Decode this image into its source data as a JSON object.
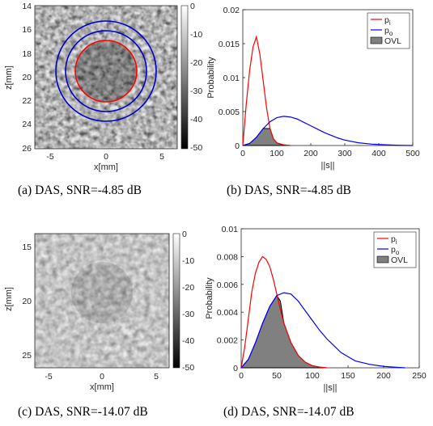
{
  "captions": {
    "a": "(a) DAS, SNR=-4.85 dB",
    "b": "(b) DAS, SNR=-4.85 dB",
    "c": "(c) DAS, SNR=-14.07 dB",
    "d": "(d) DAS, SNR=-14.07 dB"
  },
  "images": [
    {
      "id": "a",
      "xlabel": "x[mm]",
      "ylabel": "z[mm]",
      "xticks": [
        "-5",
        "0",
        "5"
      ],
      "yticks": [
        "14",
        "16",
        "18",
        "20",
        "22",
        "24",
        "26"
      ],
      "colorbar_ticks": [
        "0",
        "-10",
        "-20",
        "-30",
        "-40",
        "-50"
      ],
      "colors": {
        "inner_circle": "#ff0000",
        "outer_circles": "#0000cc"
      }
    },
    {
      "id": "c",
      "xlabel": "x[mm]",
      "ylabel": "z[mm]",
      "xticks": [
        "-5",
        "0",
        "5"
      ],
      "yticks": [
        "15",
        "20",
        "25"
      ],
      "colorbar_ticks": [
        "0",
        "-10",
        "-20",
        "-30",
        "-40",
        "-50"
      ]
    }
  ],
  "chart_data": [
    {
      "type": "area",
      "id": "b",
      "xlabel": "||s||",
      "ylabel": "Probability",
      "xlim": [
        0,
        500
      ],
      "ylim": [
        0,
        0.02
      ],
      "xticks": [
        "0",
        "100",
        "200",
        "300",
        "400",
        "500"
      ],
      "yticks": [
        "0",
        "0.005",
        "0.01",
        "0.015",
        "0.02"
      ],
      "legend_position": "top-right",
      "legend": [
        {
          "label": "p",
          "sub": "i",
          "color": "#ff0000"
        },
        {
          "label": "p",
          "sub": "o",
          "color": "#0000ff"
        },
        {
          "label": "OVL",
          "sub": "",
          "color": "#808080"
        }
      ],
      "series": [
        {
          "name": "p_i",
          "color": "#ff0000",
          "x": [
            0,
            10,
            20,
            30,
            40,
            50,
            60,
            70,
            80,
            90,
            100,
            120,
            140
          ],
          "y": [
            0,
            0.006,
            0.011,
            0.0145,
            0.016,
            0.0135,
            0.0095,
            0.0055,
            0.0025,
            0.001,
            0.0004,
            0.0001,
            0
          ]
        },
        {
          "name": "p_o",
          "color": "#0000ff",
          "x": [
            0,
            20,
            40,
            60,
            80,
            100,
            120,
            140,
            160,
            180,
            200,
            220,
            240,
            260,
            280,
            300,
            340,
            380,
            420,
            460,
            500
          ],
          "y": [
            0,
            0.0003,
            0.0012,
            0.0025,
            0.0035,
            0.0041,
            0.0043,
            0.0042,
            0.0039,
            0.0034,
            0.0029,
            0.0024,
            0.0019,
            0.0015,
            0.0011,
            0.0008,
            0.0004,
            0.0002,
            0.0001,
            3e-05,
            0
          ]
        },
        {
          "name": "OVL",
          "color": "#808080",
          "x": [
            0,
            20,
            40,
            60,
            80,
            90,
            100,
            110,
            120,
            140
          ],
          "y": [
            0,
            0.0003,
            0.0012,
            0.0025,
            0.0025,
            0.001,
            0.0004,
            0.0002,
            0.0001,
            0
          ]
        }
      ]
    },
    {
      "type": "area",
      "id": "d",
      "xlabel": "||s||",
      "ylabel": "Probability",
      "xlim": [
        0,
        250
      ],
      "ylim": [
        0,
        0.01
      ],
      "xticks": [
        "0",
        "50",
        "100",
        "150",
        "200",
        "250"
      ],
      "yticks": [
        "0",
        "0.002",
        "0.004",
        "0.006",
        "0.008",
        "0.01"
      ],
      "legend_position": "top-right",
      "legend": [
        {
          "label": "p",
          "sub": "i",
          "color": "#ff0000"
        },
        {
          "label": "p",
          "sub": "o",
          "color": "#0000ff"
        },
        {
          "label": "OVL",
          "sub": "",
          "color": "#808080"
        }
      ],
      "series": [
        {
          "name": "p_i",
          "color": "#ff0000",
          "x": [
            0,
            5,
            10,
            15,
            20,
            25,
            30,
            35,
            40,
            45,
            50,
            55,
            60,
            70,
            80,
            90,
            100,
            110,
            120
          ],
          "y": [
            0,
            0.0015,
            0.0035,
            0.0055,
            0.0068,
            0.0076,
            0.008,
            0.0078,
            0.0073,
            0.0064,
            0.0053,
            0.0042,
            0.0032,
            0.0018,
            0.0009,
            0.0004,
            0.00015,
            5e-05,
            0
          ]
        },
        {
          "name": "p_o",
          "color": "#0000ff",
          "x": [
            0,
            10,
            20,
            30,
            40,
            50,
            60,
            70,
            80,
            90,
            100,
            110,
            120,
            130,
            140,
            150,
            160,
            180,
            200,
            220,
            230
          ],
          "y": [
            0,
            0.0006,
            0.0018,
            0.0032,
            0.0044,
            0.0052,
            0.0054,
            0.0053,
            0.0048,
            0.0041,
            0.0034,
            0.0027,
            0.0021,
            0.0016,
            0.0011,
            0.0008,
            0.0005,
            0.00025,
            0.0001,
            3e-05,
            0
          ]
        },
        {
          "name": "OVL",
          "color": "#808080",
          "x": [
            0,
            10,
            20,
            30,
            40,
            45,
            50,
            55,
            60,
            70,
            80,
            90,
            100,
            110,
            120
          ],
          "y": [
            0,
            0.0006,
            0.0018,
            0.0032,
            0.0044,
            0.0048,
            0.0052,
            0.0048,
            0.0032,
            0.0018,
            0.0009,
            0.0004,
            0.00015,
            5e-05,
            0
          ]
        }
      ]
    }
  ]
}
